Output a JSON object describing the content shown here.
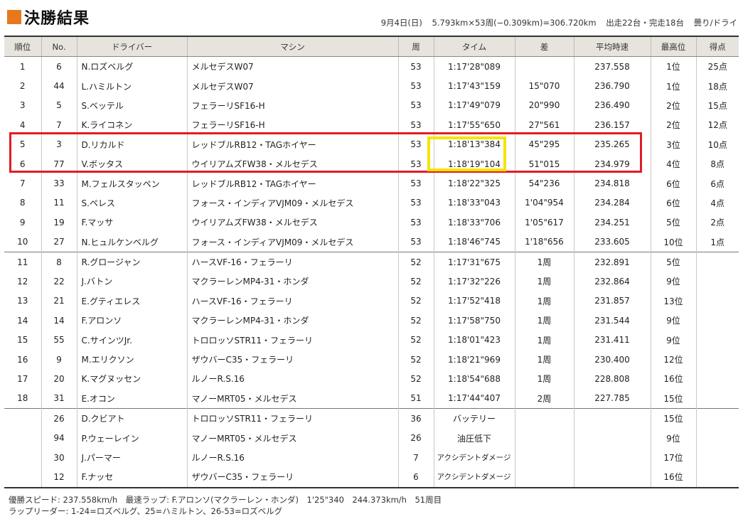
{
  "title": "決勝結果",
  "race_info": {
    "date": "9月4日(日)",
    "distance": "5.793km×53周(−0.309km)=306.720km",
    "starters": "出走22台・完走18台",
    "weather": "曇り/ドライ"
  },
  "colors": {
    "accent": "#e8781e",
    "highlight_red": "#e31b23",
    "highlight_yellow": "#f5e400",
    "header_bg": "#e6e4dc"
  },
  "columns": [
    "順位",
    "No.",
    "ドライバー",
    "マシン",
    "周",
    "タイム",
    "差",
    "平均時速",
    "最高位",
    "得点"
  ],
  "rows": [
    [
      "1",
      "6",
      "N.ロズベルグ",
      "メルセデスW07",
      "53",
      "1:17'28\"089",
      "",
      "237.558",
      "1位",
      "25点"
    ],
    [
      "2",
      "44",
      "L.ハミルトン",
      "メルセデスW07",
      "53",
      "1:17'43\"159",
      "15\"070",
      "236.790",
      "1位",
      "18点"
    ],
    [
      "3",
      "5",
      "S.ベッテル",
      "フェラーリSF16-H",
      "53",
      "1:17'49\"079",
      "20\"990",
      "236.490",
      "2位",
      "15点"
    ],
    [
      "4",
      "7",
      "K.ライコネン",
      "フェラーリSF16-H",
      "53",
      "1:17'55\"650",
      "27\"561",
      "236.157",
      "2位",
      "12点"
    ],
    [
      "5",
      "3",
      "D.リカルド",
      "レッドブルRB12・TAGホイヤー",
      "53",
      "1:18'13\"384",
      "45\"295",
      "235.265",
      "3位",
      "10点"
    ],
    [
      "6",
      "77",
      "V.ボッタス",
      "ウイリアムズFW38・メルセデス",
      "53",
      "1:18'19\"104",
      "51\"015",
      "234.979",
      "4位",
      "8点"
    ],
    [
      "7",
      "33",
      "M.フェルスタッペン",
      "レッドブルRB12・TAGホイヤー",
      "53",
      "1:18'22\"325",
      "54\"236",
      "234.818",
      "6位",
      "6点"
    ],
    [
      "8",
      "11",
      "S.ペレス",
      "フォース・インディアVJM09・メルセデス",
      "53",
      "1:18'33\"043",
      "1'04\"954",
      "234.284",
      "6位",
      "4点"
    ],
    [
      "9",
      "19",
      "F.マッサ",
      "ウイリアムズFW38・メルセデス",
      "53",
      "1:18'33\"706",
      "1'05\"617",
      "234.251",
      "5位",
      "2点"
    ],
    [
      "10",
      "27",
      "N.ヒュルケンベルグ",
      "フォース・インディアVJM09・メルセデス",
      "53",
      "1:18'46\"745",
      "1'18\"656",
      "233.605",
      "10位",
      "1点"
    ],
    [
      "11",
      "8",
      "R.グロージャン",
      "ハースVF-16・フェラーリ",
      "52",
      "1:17'31\"675",
      "1周",
      "232.891",
      "5位",
      ""
    ],
    [
      "12",
      "22",
      "J.バトン",
      "マクラーレンMP4-31・ホンダ",
      "52",
      "1:17'32\"226",
      "1周",
      "232.864",
      "9位",
      ""
    ],
    [
      "13",
      "21",
      "E.グティエレス",
      "ハースVF-16・フェラーリ",
      "52",
      "1:17'52\"418",
      "1周",
      "231.857",
      "13位",
      ""
    ],
    [
      "14",
      "14",
      "F.アロンソ",
      "マクラーレンMP4-31・ホンダ",
      "52",
      "1:17'58\"750",
      "1周",
      "231.544",
      "9位",
      ""
    ],
    [
      "15",
      "55",
      "C.サインツJr.",
      "トロロッソSTR11・フェラーリ",
      "52",
      "1:18'01\"423",
      "1周",
      "231.411",
      "9位",
      ""
    ],
    [
      "16",
      "9",
      "M.エリクソン",
      "ザウバーC35・フェラーリ",
      "52",
      "1:18'21\"969",
      "1周",
      "230.400",
      "12位",
      ""
    ],
    [
      "17",
      "20",
      "K.マグヌッセン",
      "ルノーR.S.16",
      "52",
      "1:18'54\"688",
      "1周",
      "228.808",
      "16位",
      ""
    ],
    [
      "18",
      "31",
      "E.オコン",
      "マノーMRT05・メルセデス",
      "51",
      "1:17'44\"407",
      "2周",
      "227.785",
      "15位",
      ""
    ],
    [
      "",
      "26",
      "D.クビアト",
      "トロロッソSTR11・フェラーリ",
      "36",
      "バッテリー",
      "",
      "",
      "15位",
      ""
    ],
    [
      "",
      "94",
      "P.ウェーレイン",
      "マノーMRT05・メルセデス",
      "26",
      "油圧低下",
      "",
      "",
      "9位",
      ""
    ],
    [
      "",
      "30",
      "J.パーマー",
      "ルノーR.S.16",
      "7",
      "アクシデントダメージ",
      "",
      "",
      "17位",
      ""
    ],
    [
      "",
      "12",
      "F.ナッセ",
      "ザウバーC35・フェラーリ",
      "6",
      "アクシデントダメージ",
      "",
      "",
      "16位",
      ""
    ]
  ],
  "footer": {
    "line1": "優勝スピード: 237.558km/h　最速ラップ: F.アロンソ(マクラーレン・ホンダ)　1'25\"340　244.373km/h　51周目",
    "line2": "ラップリーダー: 1-24=ロズベルグ、25=ハミルトン、26-53=ロズベルグ"
  }
}
